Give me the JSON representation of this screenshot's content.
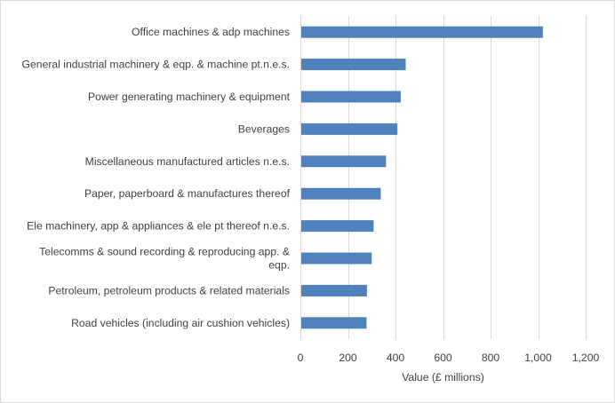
{
  "chart_data": {
    "type": "bar",
    "orientation": "horizontal",
    "categories": [
      [
        "Office machines & adp machines"
      ],
      [
        "General industrial machinery & eqp. & machine pt.n.e.s."
      ],
      [
        "Power generating machinery & equipment"
      ],
      [
        "Beverages"
      ],
      [
        "Miscellaneous manufactured articles n.e.s."
      ],
      [
        "Paper, paperboard & manufactures thereof"
      ],
      [
        "Ele machinery, app & appliances & ele pt thereof n.e.s."
      ],
      [
        "Telecomms & sound recording & reproducing app. &",
        "eqp."
      ],
      [
        "Petroleum, petroleum products & related materials"
      ],
      [
        "Road vehicles (including air cushion vehicles)"
      ]
    ],
    "values": [
      1020,
      443,
      422,
      408,
      360,
      338,
      308,
      300,
      280,
      278
    ],
    "xlabel": "Value (£ millions)",
    "ylabel": "",
    "xlim": [
      0,
      1200
    ],
    "xticks": [
      0,
      200,
      400,
      600,
      800,
      1000,
      1200
    ],
    "xtick_labels": [
      "0",
      "200",
      "400",
      "600",
      "800",
      "1,000",
      "1,200"
    ],
    "grid": "vertical",
    "legend": "none",
    "colors": {
      "bar": "#4f81bd",
      "grid": "#d9d9d9",
      "text": "#404040"
    }
  }
}
